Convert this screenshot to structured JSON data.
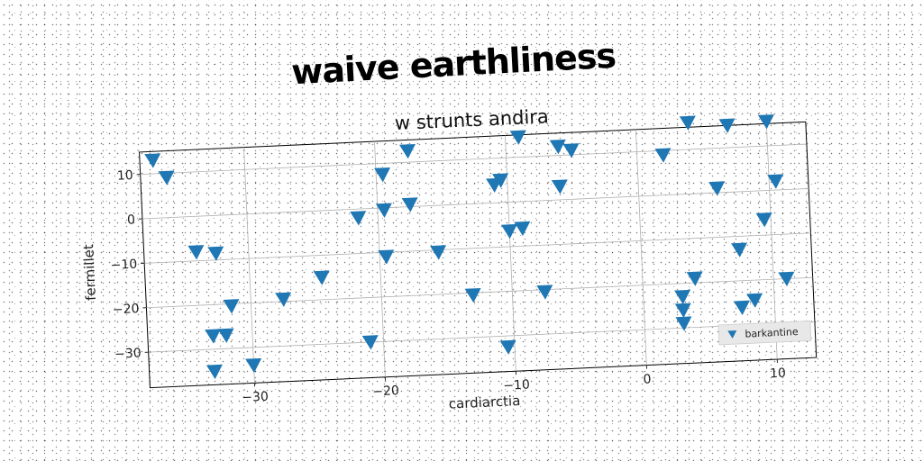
{
  "chart_data": {
    "type": "scatter",
    "title": "waive earthliness",
    "subtitle": "w strunts andira",
    "xlabel": "cardiarctia",
    "ylabel": "fermillet",
    "xlim": [
      -38,
      13
    ],
    "ylim": [
      -38,
      15
    ],
    "xticks": [
      -30,
      -20,
      -10,
      0,
      10
    ],
    "yticks": [
      10,
      0,
      -10,
      -20,
      -30
    ],
    "grid": true,
    "legend_position": "bottom-right",
    "series": [
      {
        "name": "barkantine",
        "color": "#1f77b4",
        "marker": "triangle-down",
        "points": [
          [
            -37,
            13
          ],
          [
            -36,
            9
          ],
          [
            -34,
            -8
          ],
          [
            -33,
            -27
          ],
          [
            -33,
            -35
          ],
          [
            -32.5,
            -8.5
          ],
          [
            -32,
            -27
          ],
          [
            -31.5,
            -20.5
          ],
          [
            -30,
            -34
          ],
          [
            -27.5,
            -19.5
          ],
          [
            -24.5,
            -15
          ],
          [
            -21.5,
            -2
          ],
          [
            -21,
            -30
          ],
          [
            -19.5,
            7.5
          ],
          [
            -19.5,
            -0.5
          ],
          [
            -19.5,
            -11
          ],
          [
            -17.5,
            12.5
          ],
          [
            -17.5,
            0.5
          ],
          [
            -15.5,
            -10.5
          ],
          [
            -13,
            -20.5
          ],
          [
            -11,
            4
          ],
          [
            -10.5,
            5
          ],
          [
            -10.5,
            -32.5
          ],
          [
            -10,
            -6.5
          ],
          [
            -9,
            -6
          ],
          [
            -9,
            14.5
          ],
          [
            -7.5,
            -20.5
          ],
          [
            -6,
            12
          ],
          [
            -6,
            3
          ],
          [
            -5,
            11
          ],
          [
            2,
            9
          ],
          [
            3,
            -23
          ],
          [
            3,
            -26
          ],
          [
            3,
            -29
          ],
          [
            4,
            -19
          ],
          [
            4,
            16
          ],
          [
            6,
            1
          ],
          [
            7,
            15
          ],
          [
            7.5,
            -13
          ],
          [
            7.5,
            -26
          ],
          [
            8.5,
            -24.5
          ],
          [
            9.5,
            -6.5
          ],
          [
            10,
            15.5
          ],
          [
            10.5,
            2
          ],
          [
            11,
            -20
          ]
        ]
      }
    ]
  }
}
